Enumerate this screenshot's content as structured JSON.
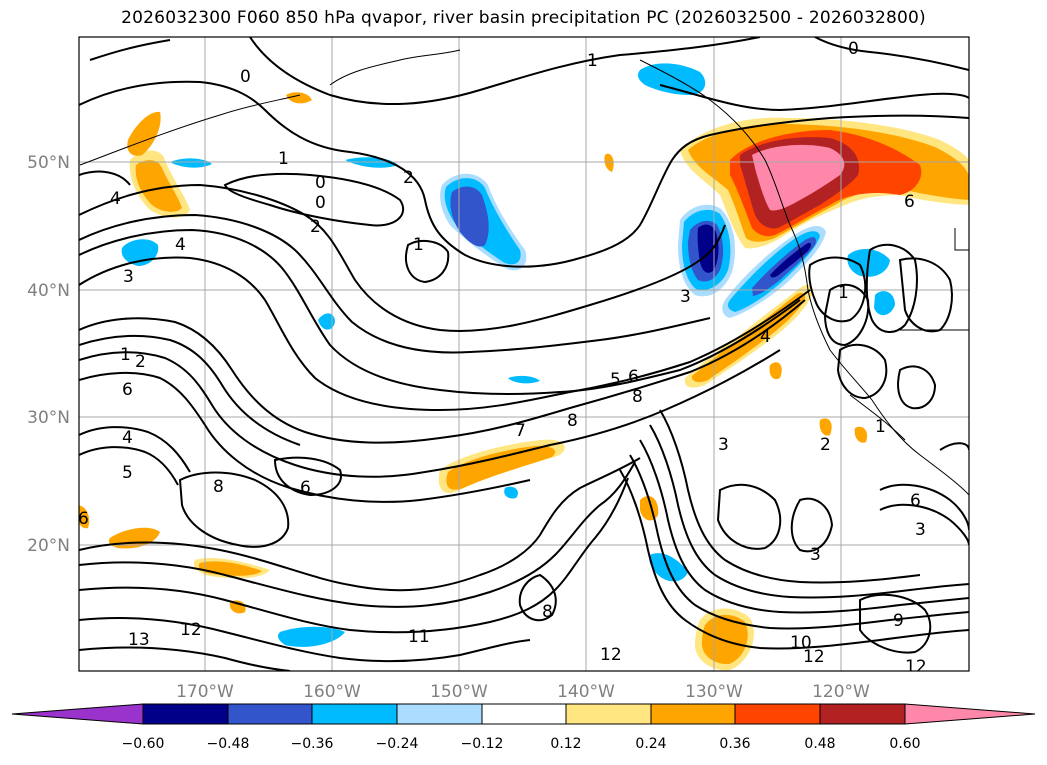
{
  "title": "2026032300 F060 850 hPa qvapor, river basin precipitation PC (2026032500 - 2026032800)",
  "latitude_labels": [
    "50°N",
    "40°N",
    "30°N",
    "20°N"
  ],
  "longitude_labels": [
    "170°W",
    "160°W",
    "150°W",
    "140°W",
    "130°W",
    "120°W"
  ],
  "contour_labels": [
    "1",
    "0",
    "1",
    "2",
    "0",
    "0",
    "2",
    "4",
    "4",
    "1",
    "3",
    "1",
    "2",
    "6",
    "5",
    "6",
    "8",
    "7",
    "8",
    "4",
    "5",
    "3",
    "2",
    "1",
    "1",
    "8",
    "6",
    "6",
    "6",
    "3",
    "3",
    "8",
    "11",
    "12",
    "13",
    "12",
    "10",
    "12",
    "9",
    "12",
    "0",
    "6",
    "4",
    "3"
  ],
  "colorbar": {
    "tick_labels": [
      "−0.60",
      "−0.48",
      "−0.36",
      "−0.24",
      "−0.12",
      "0.12",
      "0.24",
      "0.36",
      "0.48",
      "0.60"
    ],
    "colors": [
      "#9933cc",
      "#000088",
      "#3355cc",
      "#00bbff",
      "#aaddff",
      "#ffffff",
      "#ffe680",
      "#ffa500",
      "#ff4400",
      "#b22222",
      "#ff88aa"
    ]
  }
}
